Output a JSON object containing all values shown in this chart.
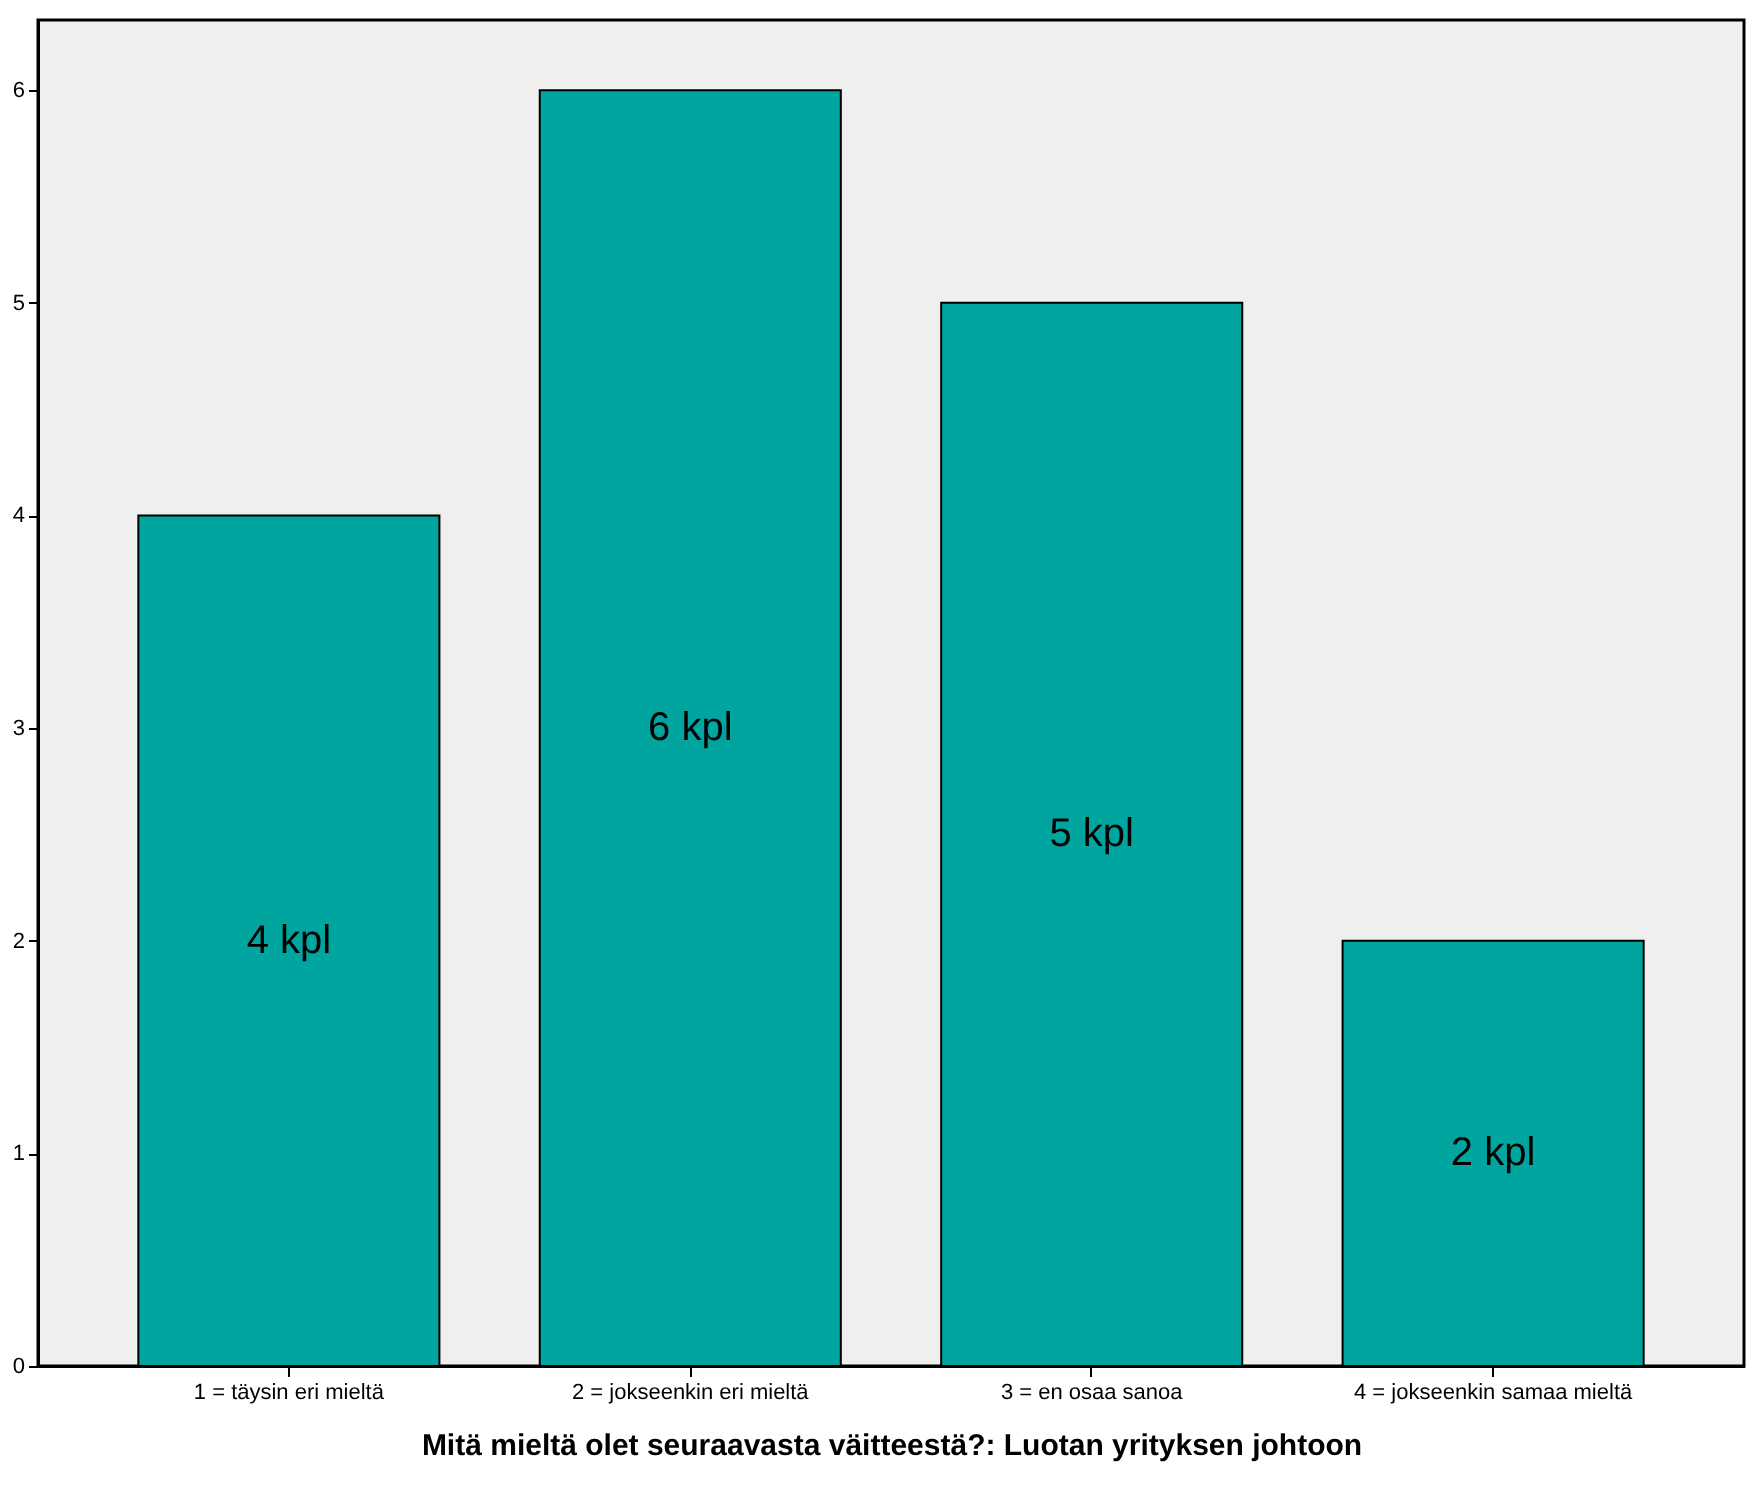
{
  "chart_data": {
    "type": "bar",
    "xlabel": "Mitä mieltä olet seuraavasta väitteestä?: Luotan yrityksen johtoon",
    "categories": [
      "1 = täysin eri mieltä",
      "2 = jokseenkin eri mieltä",
      "3 = en osaa sanoa",
      "4 = jokseenkin samaa mieltä"
    ],
    "values": [
      4,
      6,
      5,
      2
    ],
    "value_labels": [
      "4 kpl",
      "6 kpl",
      "5 kpl",
      "2 kpl"
    ],
    "color": "#00a5a0",
    "ylim": [
      0,
      6.33
    ],
    "yticks": [
      0,
      1,
      2,
      3,
      4,
      5,
      6
    ],
    "grid": false
  }
}
